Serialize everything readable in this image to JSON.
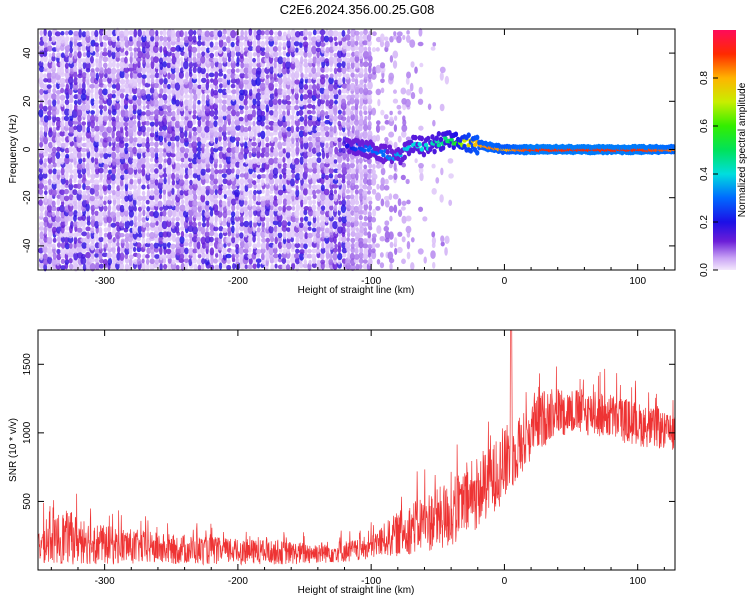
{
  "title": "C2E6.2024.356.00.25.G08",
  "chart_data": [
    {
      "type": "heatmap",
      "xlabel": "Height of straight line (km)",
      "ylabel": "Frequency (Hz)",
      "xlim": [
        -350,
        128
      ],
      "ylim": [
        -50,
        50
      ],
      "xticks": [
        -300,
        -200,
        -100,
        0,
        100
      ],
      "yticks": [
        -40,
        -20,
        0,
        20,
        40
      ],
      "colorbar": {
        "label": "Normalized spectral amplitude",
        "range": [
          0,
          1
        ],
        "ticks": [
          0.0,
          0.2,
          0.4,
          0.6,
          0.8
        ]
      },
      "noise_region_x": [
        -350,
        -40
      ],
      "signal_track": {
        "x": [
          -118,
          -110,
          -100,
          -90,
          -80,
          -70,
          -60,
          -50,
          -40,
          -30,
          -20,
          -10,
          0,
          20,
          60,
          100,
          128
        ],
        "freq": [
          2,
          1,
          0,
          -2,
          -3,
          2,
          1,
          3,
          4,
          3,
          2,
          1,
          0,
          0,
          0,
          0,
          0
        ],
        "amplitude": [
          0.2,
          0.25,
          0.3,
          0.3,
          0.35,
          0.4,
          0.4,
          0.45,
          0.5,
          0.7,
          0.8,
          0.85,
          0.8,
          0.9,
          0.9,
          0.9,
          0.85
        ]
      }
    },
    {
      "type": "line",
      "xlabel": "Height of straight line (km)",
      "ylabel": "SNR (10 * v/v)",
      "xlim": [
        -350,
        128
      ],
      "ylim": [
        0,
        1750
      ],
      "xticks": [
        -300,
        -200,
        -100,
        0,
        100
      ],
      "yticks": [
        500,
        1000,
        1500
      ],
      "color": "#ee3333",
      "envelope": {
        "x": [
          -350,
          -330,
          -300,
          -250,
          -200,
          -150,
          -110,
          -100,
          -80,
          -60,
          -40,
          -20,
          0,
          10,
          20,
          30,
          40,
          60,
          80,
          100,
          128
        ],
        "low": [
          50,
          40,
          40,
          40,
          40,
          40,
          60,
          80,
          100,
          130,
          150,
          300,
          500,
          650,
          800,
          900,
          980,
          980,
          950,
          900,
          870
        ],
        "high": [
          450,
          650,
          480,
          380,
          330,
          290,
          310,
          360,
          600,
          800,
          900,
          1050,
          1300,
          1350,
          1450,
          1550,
          1530,
          1500,
          1480,
          1400,
          1250
        ]
      },
      "spike": {
        "x": 5,
        "y": 1750
      }
    }
  ]
}
